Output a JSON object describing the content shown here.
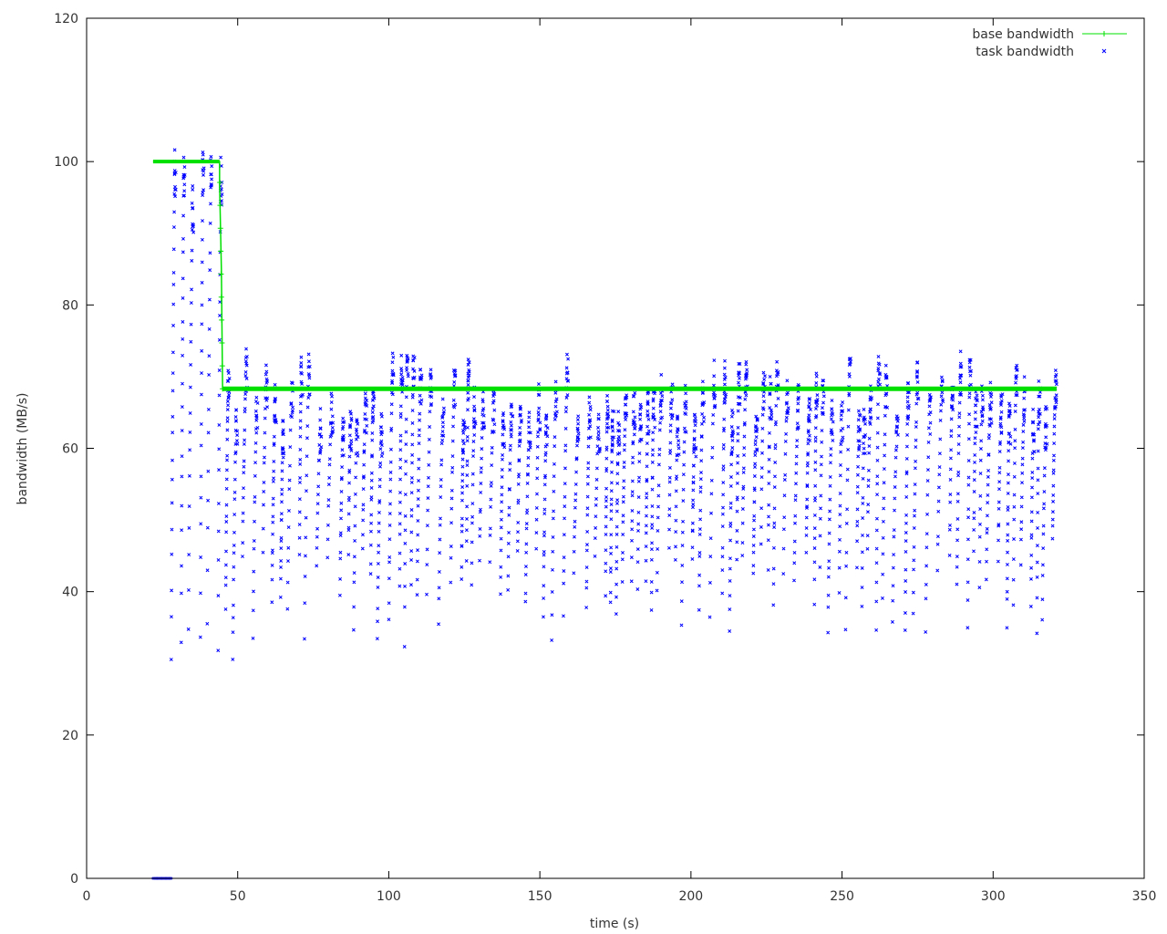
{
  "chart_data": {
    "type": "scatter",
    "xlabel": "time (s)",
    "ylabel": "bandwidth (MB/s)",
    "xlim": [
      0,
      350
    ],
    "ylim": [
      0,
      120
    ],
    "xticks": [
      0,
      50,
      100,
      150,
      200,
      250,
      300,
      350
    ],
    "yticks": [
      0,
      20,
      40,
      60,
      80,
      100,
      120
    ],
    "grid": false,
    "legend_position": "top-right",
    "series": [
      {
        "name": "base bandwidth",
        "style": "linespoints",
        "color": "#00e000",
        "points": [
          [
            22,
            100
          ],
          [
            44,
            100
          ],
          [
            44,
            97
          ],
          [
            44.3,
            91
          ],
          [
            44.6,
            85
          ],
          [
            45,
            68.3
          ],
          [
            321,
            68.3
          ]
        ]
      },
      {
        "name": "task bandwidth",
        "style": "points",
        "color": "#0000ff",
        "x_range": [
          22,
          321
        ],
        "y_range": [
          26,
          101
        ],
        "representative_cycles": [
          {
            "t_start": 28,
            "t_end": 30,
            "y_min": 26,
            "y_max": 101
          },
          {
            "t_start": 33,
            "t_end": 38,
            "y_min": 32,
            "y_max": 86
          },
          {
            "t_start": 40,
            "t_end": 44,
            "y_min": 26,
            "y_max": 74
          },
          {
            "t_start": 46,
            "t_end": 52,
            "y_min": 35,
            "y_max": 79
          },
          {
            "t_start": 60,
            "t_end": 70,
            "y_min": 33,
            "y_max": 76
          },
          {
            "t_start": 120,
            "t_end": 124,
            "y_min": 35,
            "y_max": 77
          },
          {
            "t_start": 205,
            "t_end": 212,
            "y_min": 33,
            "y_max": 74
          },
          {
            "t_start": 268,
            "t_end": 272,
            "y_min": 31,
            "y_max": 70
          },
          {
            "t_start": 310,
            "t_end": 321,
            "y_min": 37,
            "y_max": 73
          }
        ],
        "zero_segment": [
          [
            22,
            0
          ],
          [
            28,
            0
          ]
        ]
      }
    ]
  }
}
